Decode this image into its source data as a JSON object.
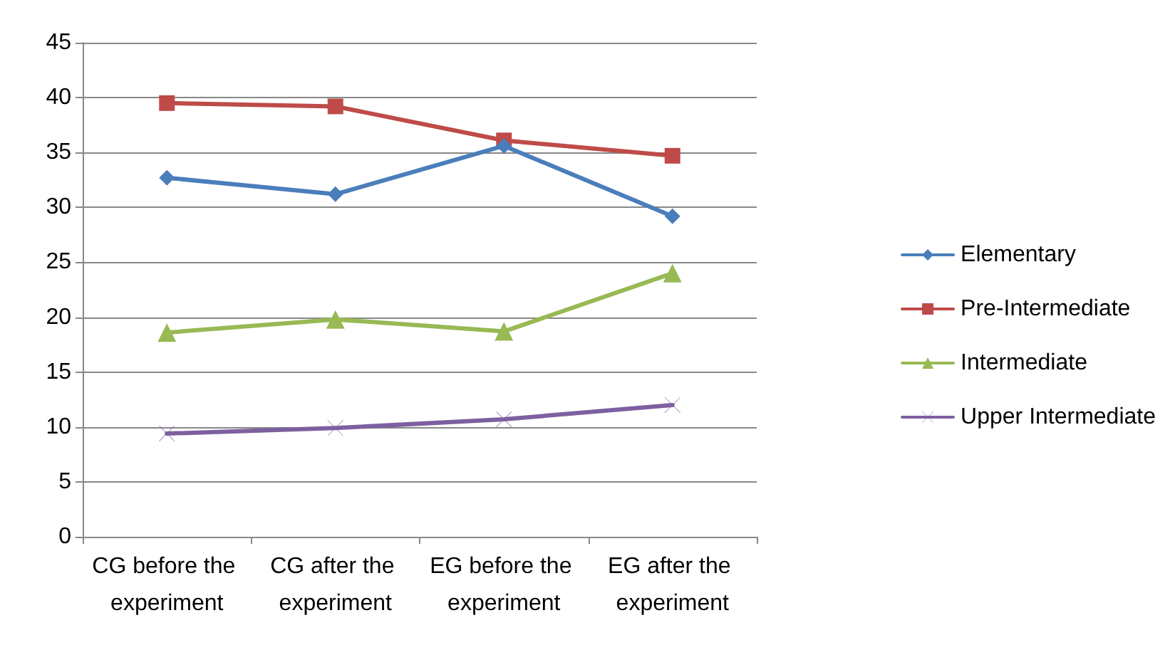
{
  "chart_data": {
    "type": "line",
    "categories": [
      "CG before the experiment",
      "CG after the experiment",
      "EG before the experiment",
      "EG after the experiment"
    ],
    "series": [
      {
        "name": "Elementary",
        "color": "#4a7ebb",
        "marker": "diamond",
        "values": [
          32.7,
          31.2,
          35.6,
          29.2
        ]
      },
      {
        "name": "Pre-Intermediate",
        "color": "#be4b48",
        "marker": "square",
        "values": [
          39.5,
          39.2,
          36.1,
          34.7
        ]
      },
      {
        "name": "Intermediate",
        "color": "#98b954",
        "marker": "triangle",
        "values": [
          18.6,
          19.8,
          18.7,
          24.0
        ]
      },
      {
        "name": "Upper Intermediate",
        "color": "#7d60a0",
        "marker": "cross",
        "values": [
          9.4,
          9.9,
          10.7,
          12.0
        ]
      }
    ],
    "ylim": [
      0,
      45
    ],
    "yticks": [
      0,
      5,
      10,
      15,
      20,
      25,
      30,
      35,
      40,
      45
    ],
    "grid": "y",
    "legend": "right"
  }
}
